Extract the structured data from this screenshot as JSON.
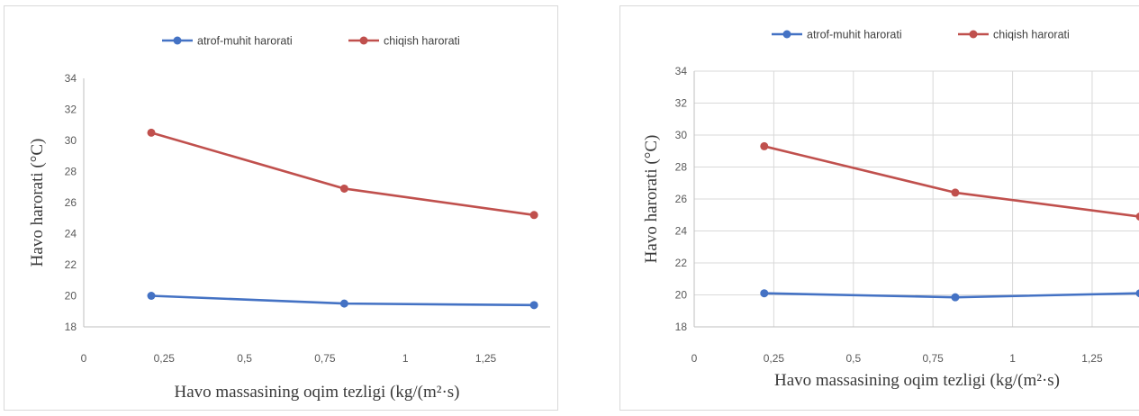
{
  "chart_data": [
    {
      "type": "line",
      "title": "",
      "xlabel": "Havo massasining oqim tezligi (kg/(m²·s)",
      "ylabel": "Havo harorati (°C)",
      "x_tick_labels": [
        "0",
        "0,25",
        "0,5",
        "0,75",
        "1",
        "1,25"
      ],
      "y_tick_labels": [
        "18",
        "20",
        "22",
        "24",
        "26",
        "28",
        "30",
        "32",
        "34"
      ],
      "xlim": [
        0,
        1.45
      ],
      "ylim": [
        18,
        34
      ],
      "x_ticks": [
        0,
        0.25,
        0.5,
        0.75,
        1,
        1.25
      ],
      "y_ticks": [
        18,
        20,
        22,
        24,
        26,
        28,
        30,
        32,
        34
      ],
      "grid": false,
      "legend_position": "top",
      "series": [
        {
          "name": "atrof-muhit harorati",
          "color": "#4472c4",
          "x": [
            0.21,
            0.81,
            1.4
          ],
          "y": [
            20.0,
            19.5,
            19.4
          ]
        },
        {
          "name": "chiqish harorati",
          "color": "#c0504d",
          "x": [
            0.21,
            0.81,
            1.4
          ],
          "y": [
            30.5,
            26.9,
            25.2
          ]
        }
      ]
    },
    {
      "type": "line",
      "title": "",
      "xlabel": "Havo massasining oqim tezligi (kg/(m²·s)",
      "ylabel": "Havo harorati (°C)",
      "x_tick_labels": [
        "0",
        "0,25",
        "0,5",
        "0,75",
        "1",
        "1,25"
      ],
      "y_tick_labels": [
        "18",
        "20",
        "22",
        "24",
        "26",
        "28",
        "30",
        "32",
        "34"
      ],
      "xlim": [
        0,
        1.4
      ],
      "ylim": [
        18,
        34
      ],
      "x_ticks": [
        0,
        0.25,
        0.5,
        0.75,
        1,
        1.25
      ],
      "y_ticks": [
        18,
        20,
        22,
        24,
        26,
        28,
        30,
        32,
        34
      ],
      "grid": true,
      "legend_position": "top",
      "series": [
        {
          "name": "atrof-muhit harorati",
          "color": "#4472c4",
          "x": [
            0.22,
            0.82,
            1.4
          ],
          "y": [
            20.1,
            19.85,
            20.1
          ]
        },
        {
          "name": "chiqish harorati",
          "color": "#c0504d",
          "x": [
            0.22,
            0.82,
            1.4
          ],
          "y": [
            29.3,
            26.4,
            24.9
          ]
        }
      ]
    }
  ]
}
